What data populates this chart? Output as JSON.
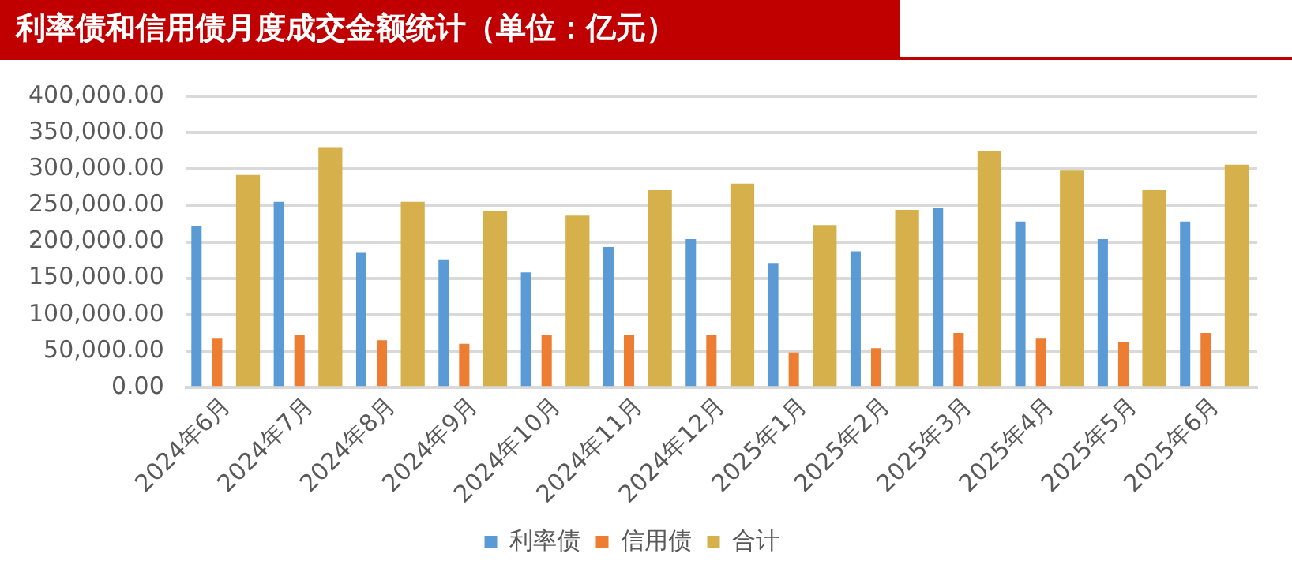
{
  "chart_data": {
    "type": "bar",
    "title": "利率债和信用债月度成交金额统计（单位：亿元）",
    "categories": [
      "2024年6月",
      "2024年7月",
      "2024年8月",
      "2024年9月",
      "2024年10月",
      "2024年11月",
      "2024年12月",
      "2025年1月",
      "2025年2月",
      "2025年3月",
      "2025年4月",
      "2025年5月",
      "2025年6月"
    ],
    "series": [
      {
        "name": "利率债",
        "color": "#5b9bd5",
        "values": [
          222000,
          255000,
          185000,
          176000,
          158000,
          193000,
          204000,
          171000,
          187000,
          247000,
          228000,
          204000,
          228000
        ]
      },
      {
        "name": "信用债",
        "color": "#ed7d31",
        "values": [
          67000,
          72000,
          65000,
          60000,
          72000,
          72000,
          72000,
          48000,
          54000,
          75000,
          67000,
          62000,
          75000
        ]
      },
      {
        "name": "合计",
        "color": "#d6b04a",
        "values": [
          292000,
          330000,
          255000,
          242000,
          236000,
          271000,
          280000,
          223000,
          244000,
          325000,
          298000,
          271000,
          306000
        ]
      }
    ],
    "ylim": [
      0,
      400000
    ],
    "yticks": [
      {
        "value": 0,
        "label": "0.00"
      },
      {
        "value": 50000,
        "label": "50,000.00"
      },
      {
        "value": 100000,
        "label": "100,000.00"
      },
      {
        "value": 150000,
        "label": "150,000.00"
      },
      {
        "value": 200000,
        "label": "200,000.00"
      },
      {
        "value": 250000,
        "label": "250,000.00"
      },
      {
        "value": 300000,
        "label": "300,000.00"
      },
      {
        "value": 350000,
        "label": "350,000.00"
      },
      {
        "value": 400000,
        "label": "400,000.00"
      }
    ],
    "grid": "y",
    "legend": "bottom"
  }
}
